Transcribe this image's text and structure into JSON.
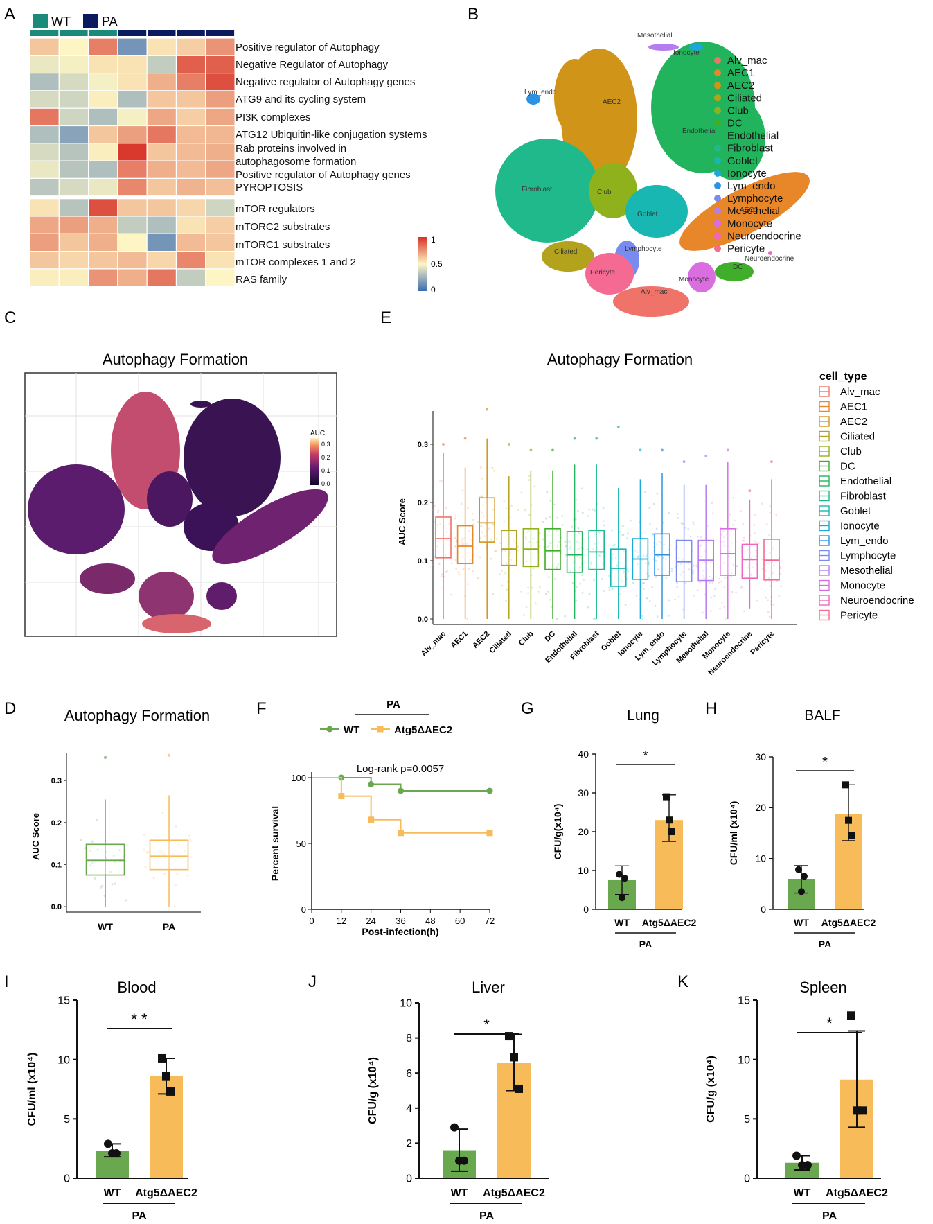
{
  "colors": {
    "wt": "#6aa84f",
    "ko": "#f8bb5a",
    "heat_low": "#3b6cb3",
    "heat_mid": "#fdf6c4",
    "heat_high": "#d73027",
    "wt_legend": "#1a8a7a",
    "pa_legend": "#0b1a5e"
  },
  "panels": {
    "A": "A",
    "B": "B",
    "C": "C",
    "D": "D",
    "E": "E",
    "F": "F",
    "G": "G",
    "H": "H",
    "I": "I",
    "J": "J",
    "K": "K"
  },
  "heatmap": {
    "legend": [
      "WT",
      "PA"
    ],
    "groups": [
      "WT",
      "WT",
      "WT",
      "PA",
      "PA",
      "PA",
      "PA"
    ],
    "rows": [
      "Positive regulator of Autophagy",
      "Negative Regulator of Autophagy",
      "Negative regulator of Autophagy genes",
      "ATG9 and its cycling system",
      "PI3K complexes",
      "ATG12 Ubiquitin-like conjugation systems",
      "Rab proteins involved in",
      "autophagosome formation",
      "Positive regulator of Autophagy genes",
      "PYROPTOSIS",
      "mTOR regulators",
      "mTORC2 substrates",
      "mTORC1 substrates",
      "mTOR complexes 1 and 2",
      "RAS family"
    ],
    "values": [
      [
        0.62,
        0.5,
        0.8,
        0.15,
        0.55,
        0.6,
        0.75
      ],
      [
        0.45,
        0.48,
        0.55,
        0.55,
        0.35,
        0.88,
        0.88
      ],
      [
        0.3,
        0.4,
        0.48,
        0.55,
        0.68,
        0.8,
        0.92
      ],
      [
        0.4,
        0.38,
        0.52,
        0.3,
        0.62,
        0.62,
        0.72
      ],
      [
        0.82,
        0.38,
        0.3,
        0.48,
        0.7,
        0.6,
        0.7
      ],
      [
        0.3,
        0.2,
        0.62,
        0.72,
        0.82,
        0.65,
        0.66
      ],
      [
        0.4,
        0.32,
        0.52,
        0.98,
        0.62,
        0.65,
        0.68
      ],
      [
        0.45,
        0.32,
        0.3,
        0.8,
        0.68,
        0.65,
        0.7
      ],
      [
        0.33,
        0.4,
        0.45,
        0.78,
        0.62,
        0.67,
        0.64
      ],
      [
        0.55,
        0.32,
        0.92,
        0.62,
        0.62,
        0.58,
        0.38
      ],
      [
        0.7,
        0.72,
        0.68,
        0.35,
        0.3,
        0.55,
        0.6
      ],
      [
        0.72,
        0.62,
        0.68,
        0.5,
        0.15,
        0.65,
        0.62
      ],
      [
        0.62,
        0.58,
        0.62,
        0.65,
        0.58,
        0.78,
        0.55
      ],
      [
        0.52,
        0.52,
        0.75,
        0.68,
        0.82,
        0.35,
        0.5
      ]
    ],
    "row_labels": [
      "Positive regulator of Autophagy",
      "Negative Regulator of Autophagy",
      "Negative regulator of Autophagy genes",
      "ATG9 and its cycling system",
      "PI3K complexes",
      "ATG12 Ubiquitin-like conjugation systems",
      "Rab proteins involved in\nautophagosome formation",
      "Positive regulator of Autophagy genes",
      "PYROPTOSIS",
      "mTOR regulators",
      "mTORC2 substrates",
      "mTORC1 substrates",
      "mTOR complexes 1 and 2",
      "RAS family"
    ],
    "scale_ticks": [
      "1",
      "0.5",
      "0"
    ]
  },
  "tsne": {
    "legend": [
      "Alv_mac",
      "AEC1",
      "AEC2",
      "Ciliated",
      "Club",
      "DC",
      "Endothelial",
      "Fibroblast",
      "Goblet",
      "Ionocyte",
      "Lym_endo",
      "Lymphocyte",
      "Mesothelial",
      "Monocyte",
      "Neuroendocrine",
      "Pericyte"
    ],
    "legend_colors": [
      "#f0736a",
      "#e8862a",
      "#cf9418",
      "#b3a31c",
      "#8fb21c",
      "#3fae2a",
      "#22b45d",
      "#1fb98c",
      "#18b7b2",
      "#1aa9d8",
      "#2b92e4",
      "#7a8bf0",
      "#b47df0",
      "#da6ee0",
      "#ef66bf",
      "#f56a92"
    ],
    "labels": [
      "Mesothelial",
      "Ionocyte",
      "Lym_endo",
      "AEC2",
      "Endothelial",
      "Fibroblast",
      "Club",
      "Goblet",
      "AEC1",
      "Neuroendocrine",
      "Ciliated",
      "Lymphocyte",
      "Pericyte",
      "DC",
      "Monocyte",
      "Alv_mac"
    ]
  },
  "auc_map": {
    "title": "Autophagy Formation",
    "legend_title": "AUC",
    "ticks": [
      "0.3",
      "0.2",
      "0.1",
      "0.0"
    ]
  },
  "chart_data": [
    {
      "panel": "E",
      "type": "box",
      "title": "Autophagy Formation",
      "ylabel": "AUC Score",
      "legend_title": "cell_type",
      "yticks": [
        "0.0",
        "0.1",
        "0.2",
        "0.3"
      ],
      "categories": [
        "Alv_mac",
        "AEC1",
        "AEC2",
        "Ciliated",
        "Club",
        "DC",
        "Endothelial",
        "Fibroblast",
        "Goblet",
        "Ionocyte",
        "Lym_endo",
        "Lymphocyte",
        "Mesothelial",
        "Monocyte",
        "Neuroendocrine",
        "Pericyte"
      ],
      "q1": [
        0.105,
        0.095,
        0.132,
        0.092,
        0.09,
        0.085,
        0.08,
        0.085,
        0.056,
        0.068,
        0.075,
        0.064,
        0.066,
        0.075,
        0.07,
        0.067
      ],
      "median": [
        0.138,
        0.125,
        0.165,
        0.12,
        0.12,
        0.117,
        0.11,
        0.115,
        0.087,
        0.103,
        0.11,
        0.098,
        0.101,
        0.112,
        0.102,
        0.101
      ],
      "q3": [
        0.175,
        0.16,
        0.208,
        0.152,
        0.155,
        0.155,
        0.15,
        0.152,
        0.12,
        0.138,
        0.146,
        0.135,
        0.135,
        0.155,
        0.128,
        0.137
      ],
      "lower": [
        0.0,
        0.0,
        0.0,
        0.0,
        0.0,
        0.0,
        0.0,
        0.0,
        0.0,
        0.0,
        0.0,
        0.0,
        0.0,
        0.0,
        0.018,
        0.0
      ],
      "upper": [
        0.285,
        0.26,
        0.31,
        0.245,
        0.255,
        0.255,
        0.265,
        0.265,
        0.225,
        0.24,
        0.25,
        0.23,
        0.23,
        0.27,
        0.205,
        0.24
      ],
      "ymax": [
        0.3,
        0.31,
        0.36,
        0.3,
        0.29,
        0.29,
        0.31,
        0.31,
        0.33,
        0.29,
        0.29,
        0.27,
        0.28,
        0.29,
        0.22,
        0.27
      ]
    },
    {
      "panel": "D",
      "type": "box",
      "title": "Autophagy Formation",
      "ylabel": "AUC Score",
      "categories": [
        "WT",
        "PA"
      ],
      "yticks": [
        "0.0",
        "0.1",
        "0.2",
        "0.3"
      ],
      "q1": [
        0.075,
        0.088
      ],
      "median": [
        0.11,
        0.12
      ],
      "q3": [
        0.148,
        0.158
      ],
      "lower": [
        0.0,
        0.0
      ],
      "upper": [
        0.255,
        0.265
      ],
      "ymax": [
        0.355,
        0.36
      ]
    },
    {
      "panel": "F",
      "type": "line",
      "title": "PA",
      "annotation": "Log-rank p=0.0057",
      "xlabel": "Post-infection(h)",
      "ylabel": "Percent survival",
      "x_ticks": [
        "0",
        "12",
        "24",
        "36",
        "48",
        "60",
        "72"
      ],
      "y_ticks": [
        "0",
        "50",
        "100"
      ],
      "series": [
        {
          "name": "WT",
          "x": [
            0,
            12,
            24,
            36,
            72
          ],
          "y": [
            100,
            100,
            95,
            90,
            90
          ]
        },
        {
          "name": "Atg5ΔAEC2",
          "x": [
            0,
            12,
            24,
            36,
            72
          ],
          "y": [
            100,
            86,
            68,
            58,
            58
          ]
        }
      ]
    },
    {
      "panel": "G",
      "type": "bar",
      "title": "Lung",
      "ylabel": "CFU/g(x10⁴)",
      "categories": [
        "WT",
        "Atg5ΔAEC2"
      ],
      "group_label": "PA",
      "sig": "*",
      "ylim": [
        0,
        40
      ],
      "yticks": [
        "0",
        "10",
        "20",
        "30",
        "40"
      ],
      "values": [
        7.5,
        23
      ],
      "err_low": [
        3.8,
        17.5
      ],
      "err_high": [
        11.2,
        29.5
      ],
      "points": [
        [
          9,
          3,
          8
        ],
        [
          29,
          23,
          20
        ]
      ]
    },
    {
      "panel": "H",
      "type": "bar",
      "title": "BALF",
      "ylabel": "CFU/ml (x10⁴)",
      "categories": [
        "WT",
        "Atg5ΔAEC2"
      ],
      "group_label": "PA",
      "sig": "*",
      "ylim": [
        0,
        30
      ],
      "yticks": [
        "0",
        "10",
        "20",
        "30"
      ],
      "values": [
        6,
        18.8
      ],
      "err_low": [
        3.2,
        13.5
      ],
      "err_high": [
        8.6,
        24.5
      ],
      "points": [
        [
          7.8,
          3.5,
          6.5
        ],
        [
          24.5,
          17.5,
          14.5
        ]
      ]
    },
    {
      "panel": "I",
      "type": "bar",
      "title": "Blood",
      "ylabel": "CFU/ml (x10⁴)",
      "categories": [
        "WT",
        "Atg5ΔAEC2"
      ],
      "group_label": "PA",
      "sig": "* *",
      "ylim": [
        0,
        15
      ],
      "yticks": [
        "0",
        "5",
        "10",
        "15"
      ],
      "values": [
        2.3,
        8.6
      ],
      "err_low": [
        1.8,
        7.1
      ],
      "err_high": [
        2.9,
        10.1
      ],
      "points": [
        [
          2.9,
          2.1,
          2.1
        ],
        [
          10.1,
          8.6,
          7.3
        ]
      ]
    },
    {
      "panel": "J",
      "type": "bar",
      "title": "Liver",
      "ylabel": "CFU/g (x10⁴)",
      "categories": [
        "WT",
        "Atg5ΔAEC2"
      ],
      "group_label": "PA",
      "sig": "*",
      "ylim": [
        0,
        10
      ],
      "yticks": [
        "0",
        "2",
        "4",
        "6",
        "8",
        "10"
      ],
      "values": [
        1.6,
        6.6
      ],
      "err_low": [
        0.4,
        5.0
      ],
      "err_high": [
        2.8,
        8.2
      ],
      "points": [
        [
          2.9,
          1.0,
          1.0
        ],
        [
          8.1,
          6.9,
          5.1
        ]
      ]
    },
    {
      "panel": "K",
      "type": "bar",
      "title": "Spleen",
      "ylabel": "CFU/g (x10⁴)",
      "categories": [
        "WT",
        "Atg5ΔAEC2"
      ],
      "group_label": "PA",
      "sig": "*",
      "ylim": [
        0,
        15
      ],
      "yticks": [
        "0",
        "5",
        "10",
        "15"
      ],
      "values": [
        1.3,
        8.3
      ],
      "err_low": [
        0.7,
        4.3
      ],
      "err_high": [
        1.9,
        12.4
      ],
      "points": [
        [
          1.9,
          1.1,
          1.1
        ],
        [
          13.7,
          5.7,
          5.7
        ]
      ]
    }
  ]
}
